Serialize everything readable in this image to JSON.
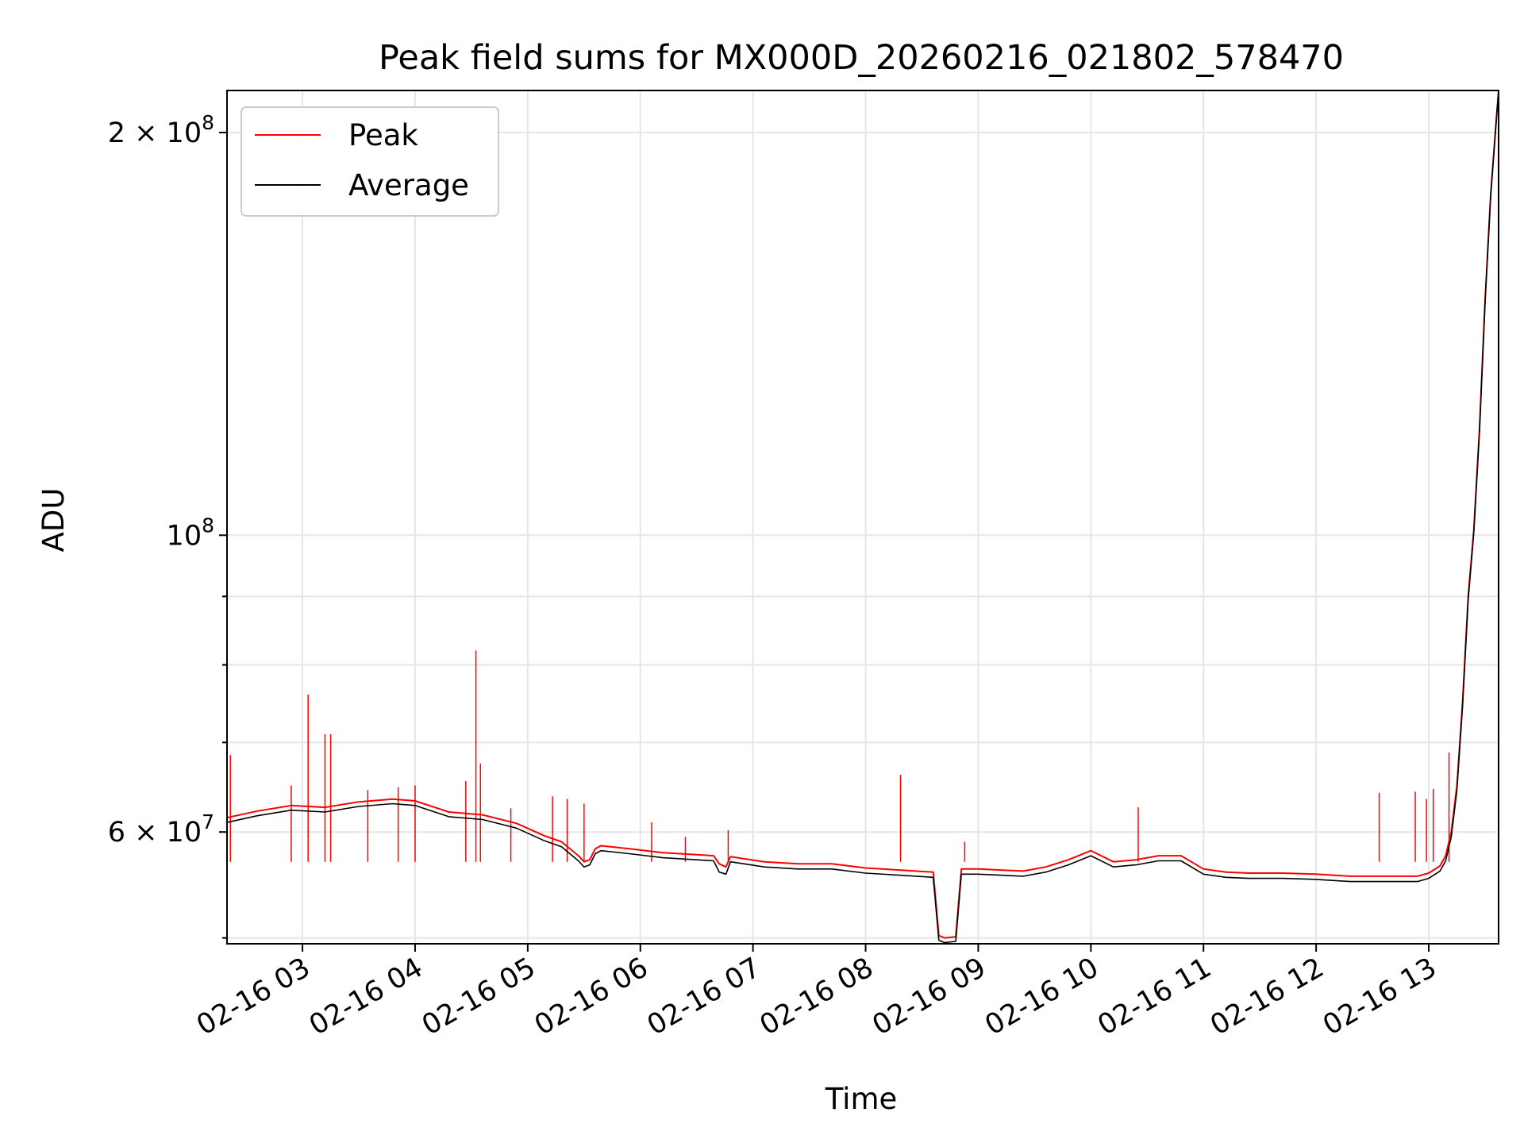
{
  "chart_data": {
    "type": "line",
    "title": "Peak field sums for MX000D_20260216_021802_578470",
    "xlabel": "Time",
    "ylabel": "ADU",
    "x_unit": "hours since 02-16 00:00",
    "xlim": [
      2.33,
      13.62
    ],
    "ylim": [
      49500000,
      215000000
    ],
    "y_scale": "log",
    "grid": true,
    "legend_position": "upper-left",
    "x_ticks": [
      {
        "value": 3,
        "label": "02-16 03"
      },
      {
        "value": 4,
        "label": "02-16 04"
      },
      {
        "value": 5,
        "label": "02-16 05"
      },
      {
        "value": 6,
        "label": "02-16 06"
      },
      {
        "value": 7,
        "label": "02-16 07"
      },
      {
        "value": 8,
        "label": "02-16 08"
      },
      {
        "value": 9,
        "label": "02-16 09"
      },
      {
        "value": 10,
        "label": "02-16 10"
      },
      {
        "value": 11,
        "label": "02-16 11"
      },
      {
        "value": 12,
        "label": "02-16 12"
      },
      {
        "value": 13,
        "label": "02-16 13"
      }
    ],
    "y_major_ticks": [
      {
        "value": 100000000,
        "mantissa": "",
        "exponent": "8"
      },
      {
        "value": 200000000,
        "mantissa": "2 × 10",
        "exponent": "8"
      },
      {
        "value": 60000000,
        "mantissa": "6 × 10",
        "exponent": "7"
      }
    ],
    "y_minor_ticks": [
      50000000,
      70000000,
      80000000,
      90000000
    ],
    "series": [
      {
        "name": "Peak",
        "color": "#ff0000",
        "x": [
          2.33,
          2.6,
          2.9,
          3.2,
          3.5,
          3.8,
          4.0,
          4.3,
          4.6,
          4.9,
          5.15,
          5.3,
          5.45,
          5.5,
          5.55,
          5.6,
          5.65,
          5.9,
          6.2,
          6.5,
          6.65,
          6.7,
          6.76,
          6.8,
          7.1,
          7.4,
          7.7,
          8.0,
          8.3,
          8.6,
          8.65,
          8.7,
          8.8,
          8.85,
          9.0,
          9.2,
          9.4,
          9.6,
          9.8,
          10.0,
          10.2,
          10.4,
          10.6,
          10.8,
          11.0,
          11.2,
          11.4,
          11.7,
          12.0,
          12.3,
          12.6,
          12.9,
          13.0,
          13.1,
          13.15,
          13.2,
          13.25,
          13.3,
          13.35,
          13.4,
          13.45,
          13.5,
          13.55,
          13.6,
          13.62
        ],
        "y": [
          61500000,
          62200000,
          62800000,
          62600000,
          63200000,
          63500000,
          63300000,
          62100000,
          61800000,
          60900000,
          59600000,
          59000000,
          57600000,
          57000000,
          57200000,
          58300000,
          58600000,
          58300000,
          57900000,
          57700000,
          57600000,
          56800000,
          56500000,
          57500000,
          57000000,
          56800000,
          56800000,
          56400000,
          56200000,
          56000000,
          50200000,
          50000000,
          50100000,
          56300000,
          56300000,
          56200000,
          56100000,
          56500000,
          57200000,
          58100000,
          57000000,
          57200000,
          57600000,
          57600000,
          56300000,
          56000000,
          55900000,
          55900000,
          55800000,
          55600000,
          55600000,
          55600000,
          55900000,
          56600000,
          57600000,
          60000000,
          65000000,
          75000000,
          90000000,
          101000000,
          120000000,
          150000000,
          180000000,
          205000000,
          215000000
        ]
      },
      {
        "name": "Average",
        "color": "#000000",
        "x": [
          2.33,
          2.6,
          2.9,
          3.2,
          3.5,
          3.8,
          4.0,
          4.3,
          4.6,
          4.9,
          5.15,
          5.3,
          5.45,
          5.5,
          5.55,
          5.6,
          5.65,
          5.9,
          6.2,
          6.5,
          6.65,
          6.7,
          6.76,
          6.8,
          7.1,
          7.4,
          7.7,
          8.0,
          8.3,
          8.6,
          8.65,
          8.7,
          8.8,
          8.85,
          9.0,
          9.2,
          9.4,
          9.6,
          9.8,
          10.0,
          10.2,
          10.4,
          10.6,
          10.8,
          11.0,
          11.2,
          11.4,
          11.7,
          12.0,
          12.3,
          12.6,
          12.9,
          13.0,
          13.1,
          13.15,
          13.2,
          13.25,
          13.3,
          13.35,
          13.4,
          13.45,
          13.5,
          13.55,
          13.6,
          13.62
        ],
        "y": [
          61000000,
          61700000,
          62300000,
          62100000,
          62700000,
          63000000,
          62800000,
          61600000,
          61300000,
          60400000,
          59100000,
          58500000,
          57100000,
          56500000,
          56700000,
          57800000,
          58100000,
          57800000,
          57400000,
          57200000,
          57100000,
          56000000,
          55800000,
          57000000,
          56500000,
          56300000,
          56300000,
          55900000,
          55700000,
          55500000,
          49800000,
          49600000,
          49700000,
          55800000,
          55800000,
          55700000,
          55600000,
          56000000,
          56700000,
          57600000,
          56500000,
          56700000,
          57100000,
          57100000,
          55800000,
          55500000,
          55400000,
          55400000,
          55300000,
          55100000,
          55100000,
          55100000,
          55400000,
          56100000,
          57100000,
          59500000,
          64500000,
          74500000,
          89500000,
          100500000,
          119500000,
          149500000,
          179500000,
          204500000,
          215000000
        ]
      }
    ],
    "spikes": [
      {
        "x": 2.36,
        "y": 68500000
      },
      {
        "x": 2.9,
        "y": 65000000
      },
      {
        "x": 3.05,
        "y": 76000000
      },
      {
        "x": 3.2,
        "y": 71000000
      },
      {
        "x": 3.25,
        "y": 71000000
      },
      {
        "x": 3.58,
        "y": 64500000
      },
      {
        "x": 3.85,
        "y": 64800000
      },
      {
        "x": 4.0,
        "y": 65000000
      },
      {
        "x": 4.45,
        "y": 65500000
      },
      {
        "x": 4.54,
        "y": 82000000
      },
      {
        "x": 4.58,
        "y": 67500000
      },
      {
        "x": 4.85,
        "y": 62500000
      },
      {
        "x": 5.22,
        "y": 63800000
      },
      {
        "x": 5.35,
        "y": 63500000
      },
      {
        "x": 5.5,
        "y": 63000000
      },
      {
        "x": 6.1,
        "y": 61000000
      },
      {
        "x": 6.4,
        "y": 59500000
      },
      {
        "x": 6.78,
        "y": 60200000
      },
      {
        "x": 8.31,
        "y": 66200000
      },
      {
        "x": 8.88,
        "y": 59000000
      },
      {
        "x": 10.42,
        "y": 62600000
      },
      {
        "x": 12.56,
        "y": 64200000
      },
      {
        "x": 12.88,
        "y": 64300000
      },
      {
        "x": 12.98,
        "y": 63500000
      },
      {
        "x": 13.04,
        "y": 64600000
      },
      {
        "x": 13.18,
        "y": 68800000
      }
    ]
  }
}
